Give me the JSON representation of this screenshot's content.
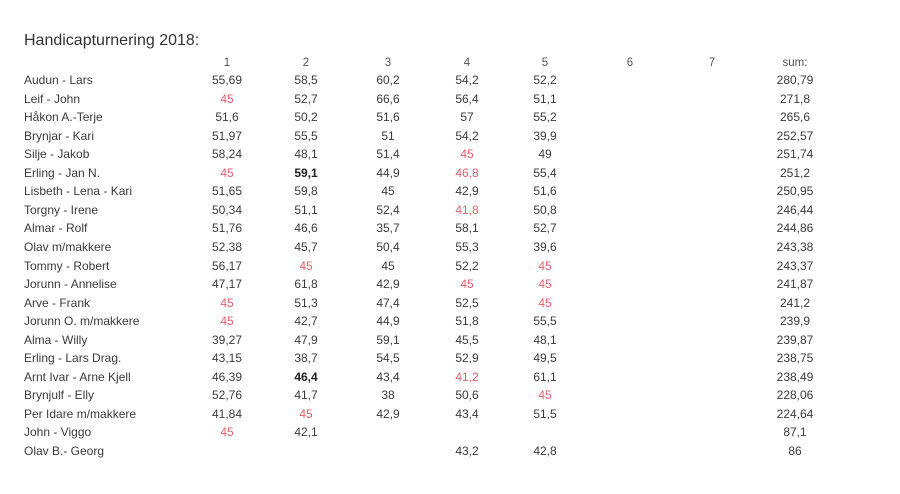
{
  "title": "Handicapturnering 2018:",
  "columns": [
    "1",
    "2",
    "3",
    "4",
    "5",
    "6",
    "7",
    "sum:"
  ],
  "highlight_color": "#e0606c",
  "rows": [
    {
      "name": "Audun - Lars",
      "scores": [
        "55,69",
        "58,5",
        "60,2",
        "54,2",
        "52,2",
        "",
        ""
      ],
      "sum": "280,79",
      "red": [],
      "bold": []
    },
    {
      "name": "Leif - John",
      "scores": [
        "45",
        "52,7",
        "66,6",
        "56,4",
        "51,1",
        "",
        ""
      ],
      "sum": "271,8",
      "red": [
        0
      ],
      "bold": []
    },
    {
      "name": "Håkon A.-Terje",
      "scores": [
        "51,6",
        "50,2",
        "51,6",
        "57",
        "55,2",
        "",
        ""
      ],
      "sum": "265,6",
      "red": [],
      "bold": []
    },
    {
      "name": "Brynjar - Kari",
      "scores": [
        "51,97",
        "55,5",
        "51",
        "54,2",
        "39,9",
        "",
        ""
      ],
      "sum": "252,57",
      "red": [],
      "bold": []
    },
    {
      "name": "Silje - Jakob",
      "scores": [
        "58,24",
        "48,1",
        "51,4",
        "45",
        "49",
        "",
        ""
      ],
      "sum": "251,74",
      "red": [
        3
      ],
      "bold": []
    },
    {
      "name": "Erling - Jan N.",
      "scores": [
        "45",
        "59,1",
        "44,9",
        "46,8",
        "55,4",
        "",
        ""
      ],
      "sum": "251,2",
      "red": [
        0,
        3
      ],
      "bold": [
        1
      ]
    },
    {
      "name": "Lisbeth - Lena - Kari",
      "scores": [
        "51,65",
        "59,8",
        "45",
        "42,9",
        "51,6",
        "",
        ""
      ],
      "sum": "250,95",
      "red": [],
      "bold": []
    },
    {
      "name": "Torgny - Irene",
      "scores": [
        "50,34",
        "51,1",
        "52,4",
        "41,8",
        "50,8",
        "",
        ""
      ],
      "sum": "246,44",
      "red": [
        3
      ],
      "bold": []
    },
    {
      "name": "Almar - Rolf",
      "scores": [
        "51,76",
        "46,6",
        "35,7",
        "58,1",
        "52,7",
        "",
        ""
      ],
      "sum": "244,86",
      "red": [],
      "bold": []
    },
    {
      "name": "Olav m/makkere",
      "scores": [
        "52,38",
        "45,7",
        "50,4",
        "55,3",
        "39,6",
        "",
        ""
      ],
      "sum": "243,38",
      "red": [],
      "bold": []
    },
    {
      "name": "Tommy - Robert",
      "scores": [
        "56,17",
        "45",
        "45",
        "52,2",
        "45",
        "",
        ""
      ],
      "sum": "243,37",
      "red": [
        1,
        4
      ],
      "bold": []
    },
    {
      "name": "Jorunn - Annelise",
      "scores": [
        "47,17",
        "61,8",
        "42,9",
        "45",
        "45",
        "",
        ""
      ],
      "sum": "241,87",
      "red": [
        3,
        4
      ],
      "bold": []
    },
    {
      "name": "Arve - Frank",
      "scores": [
        "45",
        "51,3",
        "47,4",
        "52,5",
        "45",
        "",
        ""
      ],
      "sum": "241,2",
      "red": [
        0,
        4
      ],
      "bold": []
    },
    {
      "name": "Jorunn O. m/makkere",
      "scores": [
        "45",
        "42,7",
        "44,9",
        "51,8",
        "55,5",
        "",
        ""
      ],
      "sum": "239,9",
      "red": [
        0
      ],
      "bold": []
    },
    {
      "name": "Alma - Willy",
      "scores": [
        "39,27",
        "47,9",
        "59,1",
        "45,5",
        "48,1",
        "",
        ""
      ],
      "sum": "239,87",
      "red": [],
      "bold": []
    },
    {
      "name": "Erling - Lars Drag.",
      "scores": [
        "43,15",
        "38,7",
        "54,5",
        "52,9",
        "49,5",
        "",
        ""
      ],
      "sum": "238,75",
      "red": [],
      "bold": []
    },
    {
      "name": "Arnt Ivar - Arne Kjell",
      "scores": [
        "46,39",
        "46,4",
        "43,4",
        "41,2",
        "61,1",
        "",
        ""
      ],
      "sum": "238,49",
      "red": [
        3
      ],
      "bold": [
        1
      ]
    },
    {
      "name": "Brynjulf - Elly",
      "scores": [
        "52,76",
        "41,7",
        "38",
        "50,6",
        "45",
        "",
        ""
      ],
      "sum": "228,06",
      "red": [
        4
      ],
      "bold": []
    },
    {
      "name": "Per Idare m/makkere",
      "scores": [
        "41,84",
        "45",
        "42,9",
        "43,4",
        "51,5",
        "",
        ""
      ],
      "sum": "224,64",
      "red": [
        1
      ],
      "bold": []
    },
    {
      "name": "John - Viggo",
      "scores": [
        "45",
        "42,1",
        "",
        "",
        "",
        "",
        ""
      ],
      "sum": "87,1",
      "red": [
        0
      ],
      "bold": []
    },
    {
      "name": "Olav B.- Georg",
      "scores": [
        "",
        "",
        "",
        "43,2",
        "42,8",
        "",
        ""
      ],
      "sum": "86",
      "red": [],
      "bold": []
    }
  ]
}
